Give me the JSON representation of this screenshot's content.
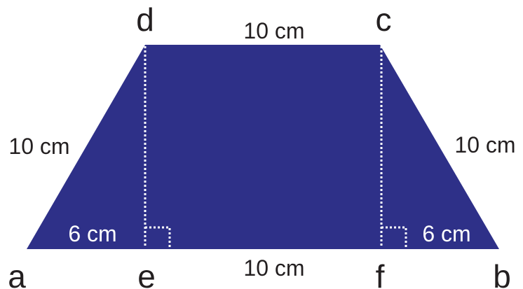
{
  "colors": {
    "shape_fill": "#2e3088",
    "text": "#231f20",
    "inner_text": "#ffffff"
  },
  "vertices": {
    "a": "a",
    "b": "b",
    "c": "c",
    "d": "d",
    "e": "e",
    "f": "f"
  },
  "measurements": {
    "top_side": "10 cm",
    "bottom_middle": "10 cm",
    "left_side": "10 cm",
    "right_side": "10 cm",
    "left_base_segment": "6 cm",
    "right_base_segment": "6 cm"
  }
}
